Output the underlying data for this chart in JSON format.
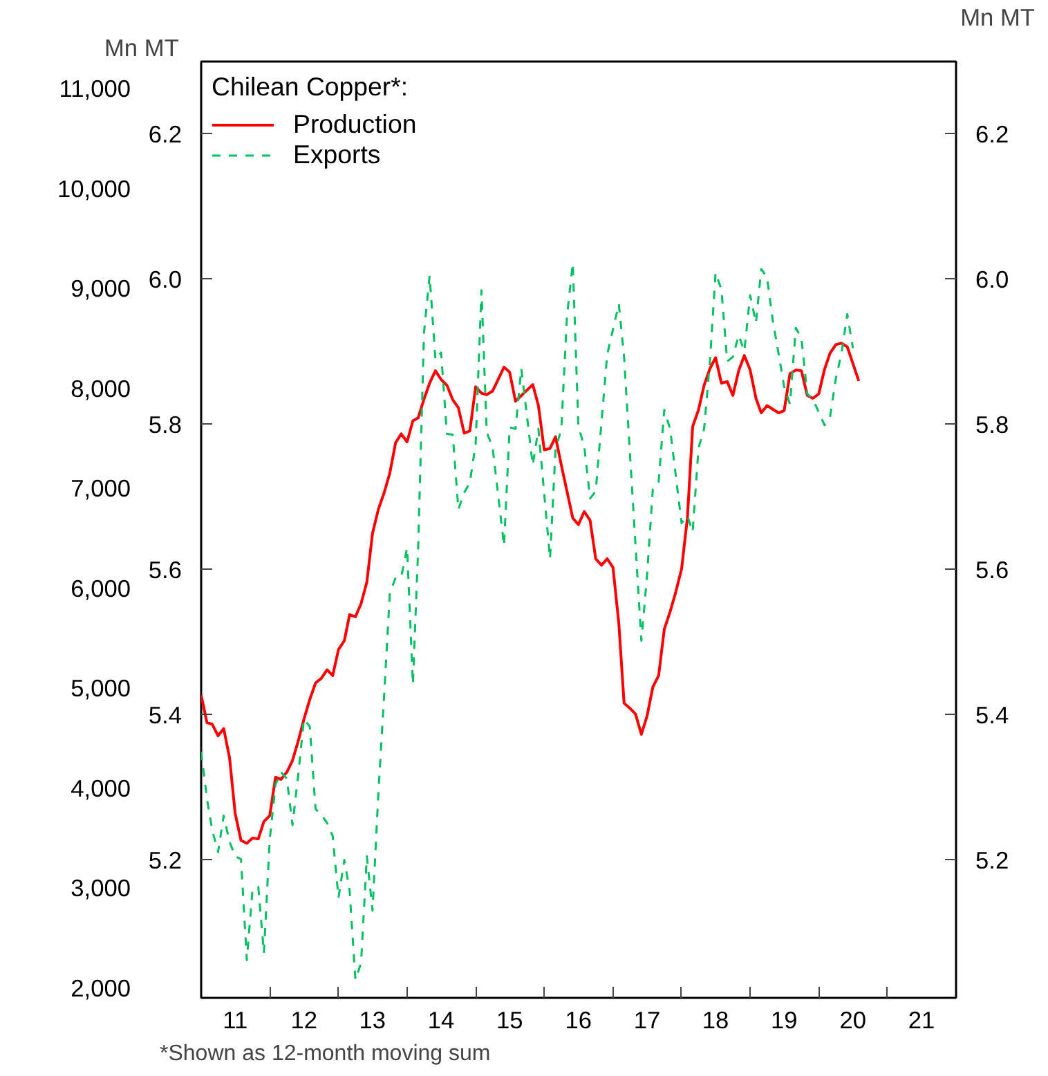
{
  "chart_data": {
    "type": "line",
    "legend_title": "Chilean Copper*:",
    "ylabel": "Mn MT",
    "y2label": "Mn MT",
    "annotations": [
      "*Shown as 12-month moving sum"
    ],
    "legend": "top left",
    "grid": false,
    "xlim": [
      "2011-01",
      "2022-01"
    ],
    "xticks": [
      {
        "value": "2011-07-01",
        "label": "11"
      },
      {
        "value": "2012-07-01",
        "label": "12"
      },
      {
        "value": "2013-07-01",
        "label": "13"
      },
      {
        "value": "2014-07-01",
        "label": "14"
      },
      {
        "value": "2015-07-01",
        "label": "15"
      },
      {
        "value": "2016-07-01",
        "label": "16"
      },
      {
        "value": "2017-07-01",
        "label": "17"
      },
      {
        "value": "2018-07-01",
        "label": "18"
      },
      {
        "value": "2019-07-01",
        "label": "19"
      },
      {
        "value": "2020-07-01",
        "label": "20"
      },
      {
        "value": "2021-07-01",
        "label": "21"
      },
      {
        "value": "2012-01-01",
        "label": null
      },
      {
        "value": "2013-01-01",
        "label": null
      },
      {
        "value": "2014-01-01",
        "label": null
      },
      {
        "value": "2015-01-01",
        "label": null
      },
      {
        "value": "2016-01-01",
        "label": null
      },
      {
        "value": "2017-01-01",
        "label": null
      },
      {
        "value": "2018-01-01",
        "label": null
      },
      {
        "value": "2019-01-01",
        "label": null
      },
      {
        "value": "2020-01-01",
        "label": null
      },
      {
        "value": "2021-01-01",
        "label": null
      }
    ],
    "ylim": [
      5.01,
      6.3
    ],
    "yticks": [
      5.2,
      5.4,
      5.6,
      5.8,
      {
        "value": 6.0,
        "label": "6.0"
      },
      6.2
    ],
    "y2lim": [
      5.01,
      6.3
    ],
    "y2ticks": [
      5.2,
      5.4,
      5.6,
      5.8,
      {
        "value": 6.0,
        "label": "6.0"
      },
      6.2
    ],
    "y3lim": [
      1900,
      11270
    ],
    "y3ticks": [
      {
        "value": 2000,
        "label": "2,000"
      },
      {
        "value": 3000,
        "label": "3,000"
      },
      {
        "value": 4000,
        "label": "4,000"
      },
      {
        "value": 5000,
        "label": "5,000"
      },
      {
        "value": 6000,
        "label": "6,000"
      },
      {
        "value": 7000,
        "label": "7,000"
      },
      {
        "value": 8000,
        "label": "8,000"
      },
      {
        "value": 9000,
        "label": "9,000"
      },
      {
        "value": 10000,
        "label": "10,000"
      },
      {
        "value": 11000,
        "label": "11,000"
      }
    ],
    "series": [
      {
        "name": "Production",
        "color": "#ff0000",
        "line_style": "solid",
        "x": [
          "2011-01",
          "2011-02",
          "2011-03",
          "2011-04",
          "2011-05",
          "2011-06",
          "2011-07",
          "2011-08",
          "2011-09",
          "2011-10",
          "2011-11",
          "2011-12",
          "2012-01",
          "2012-02",
          "2012-03",
          "2012-04",
          "2012-05",
          "2012-06",
          "2012-07",
          "2012-08",
          "2012-09",
          "2012-10",
          "2012-11",
          "2012-12",
          "2013-01",
          "2013-02",
          "2013-03",
          "2013-04",
          "2013-05",
          "2013-06",
          "2013-07",
          "2013-08",
          "2013-09",
          "2013-10",
          "2013-11",
          "2013-12",
          "2014-01",
          "2014-02",
          "2014-03",
          "2014-04",
          "2014-05",
          "2014-06",
          "2014-07",
          "2014-08",
          "2014-09",
          "2014-10",
          "2014-11",
          "2014-12",
          "2015-01",
          "2015-02",
          "2015-03",
          "2015-04",
          "2015-05",
          "2015-06",
          "2015-07",
          "2015-08",
          "2015-11",
          "2015-12",
          "2016-01",
          "2016-02",
          "2016-03",
          "2016-04",
          "2016-06",
          "2016-07",
          "2016-08",
          "2016-09",
          "2016-10",
          "2016-11",
          "2016-12",
          "2017-01",
          "2017-02",
          "2017-03",
          "2017-04",
          "2017-05",
          "2017-06",
          "2017-07",
          "2017-08",
          "2017-09",
          "2017-10",
          "2017-11",
          "2017-12",
          "2018-01",
          "2018-02",
          "2018-03",
          "2018-04",
          "2018-05",
          "2018-06",
          "2018-07",
          "2018-08",
          "2018-09",
          "2018-10",
          "2018-11",
          "2018-12",
          "2019-01",
          "2019-02",
          "2019-03",
          "2019-04",
          "2019-05",
          "2019-06",
          "2019-07",
          "2019-08",
          "2019-09",
          "2019-10",
          "2019-11",
          "2019-12",
          "2020-01",
          "2020-02",
          "2020-03",
          "2020-04",
          "2020-05",
          "2020-06",
          "2020-07",
          "2020-08"
        ],
        "values": [
          5.427,
          5.389,
          5.387,
          5.371,
          5.381,
          5.341,
          5.264,
          5.227,
          5.223,
          5.23,
          5.229,
          5.253,
          5.261,
          5.314,
          5.311,
          5.321,
          5.337,
          5.364,
          5.394,
          5.421,
          5.444,
          5.45,
          5.462,
          5.454,
          5.49,
          5.502,
          5.538,
          5.535,
          5.553,
          5.583,
          5.65,
          5.683,
          5.706,
          5.733,
          5.775,
          5.787,
          5.776,
          5.805,
          5.809,
          5.835,
          5.857,
          5.874,
          5.862,
          5.854,
          5.834,
          5.823,
          5.788,
          5.791,
          5.852,
          5.843,
          5.841,
          5.846,
          5.862,
          5.879,
          5.872,
          5.832,
          5.855,
          5.826,
          5.765,
          5.767,
          5.783,
          5.744,
          5.671,
          5.662,
          5.68,
          5.668,
          5.615,
          5.606,
          5.615,
          5.603,
          5.526,
          5.416,
          5.409,
          5.401,
          5.373,
          5.398,
          5.438,
          5.454,
          5.518,
          5.542,
          5.569,
          5.601,
          5.671,
          5.797,
          5.82,
          5.854,
          5.877,
          5.892,
          5.857,
          5.859,
          5.84,
          5.874,
          5.895,
          5.875,
          5.836,
          5.816,
          5.826,
          5.821,
          5.816,
          5.819,
          5.87,
          5.875,
          5.874,
          5.84,
          5.836,
          5.842,
          5.876,
          5.898,
          5.91,
          5.912,
          5.907,
          5.884,
          5.86
        ]
      },
      {
        "name": "Exports",
        "color": "#00c060",
        "line_style": "dashed",
        "x": [
          "2011-01",
          "2011-02",
          "2011-03",
          "2011-04",
          "2011-05",
          "2011-06",
          "2011-07",
          "2011-08",
          "2011-09",
          "2011-10",
          "2011-11",
          "2011-12",
          "2012-01",
          "2012-02",
          "2012-03",
          "2012-04",
          "2012-05",
          "2012-06",
          "2012-07",
          "2012-08",
          "2012-09",
          "2012-10",
          "2012-11",
          "2012-12",
          "2013-01",
          "2013-02",
          "2013-03",
          "2013-04",
          "2013-05",
          "2013-06",
          "2013-07",
          "2013-08",
          "2013-09",
          "2013-10",
          "2013-11",
          "2013-12",
          "2014-01",
          "2014-02",
          "2014-03",
          "2014-04",
          "2014-05",
          "2014-06",
          "2014-07",
          "2014-08",
          "2014-09",
          "2014-10",
          "2014-11",
          "2014-12",
          "2015-01",
          "2015-02",
          "2015-03",
          "2015-04",
          "2015-06",
          "2015-07",
          "2015-08",
          "2015-09",
          "2015-11",
          "2015-12",
          "2016-02",
          "2016-03",
          "2016-04",
          "2016-05",
          "2016-06",
          "2016-07",
          "2016-08",
          "2016-09",
          "2016-10",
          "2016-12",
          "2017-02",
          "2017-03",
          "2017-06",
          "2017-07",
          "2017-08",
          "2017-09",
          "2017-10",
          "2017-11",
          "2018-01",
          "2018-02",
          "2018-03",
          "2018-04",
          "2018-05",
          "2018-06",
          "2018-07",
          "2018-08",
          "2018-09",
          "2018-10",
          "2018-11",
          "2018-12",
          "2019-01",
          "2019-02",
          "2019-03",
          "2019-04",
          "2019-05",
          "2019-06",
          "2019-07",
          "2019-08",
          "2019-09",
          "2019-10",
          "2019-11",
          "2019-12",
          "2020-02",
          "2020-03",
          "2020-04",
          "2020-05",
          "2020-06",
          "2020-07"
        ],
        "values": [
          5.349,
          5.284,
          5.241,
          5.211,
          5.261,
          5.225,
          5.205,
          5.201,
          5.062,
          5.158,
          5.163,
          5.072,
          5.228,
          5.304,
          5.321,
          5.312,
          5.248,
          5.318,
          5.394,
          5.384,
          5.27,
          5.263,
          5.251,
          5.233,
          5.148,
          5.2,
          5.158,
          5.035,
          5.058,
          5.205,
          5.13,
          5.291,
          5.427,
          5.567,
          5.589,
          5.59,
          5.63,
          5.442,
          5.63,
          5.926,
          6.005,
          5.889,
          5.899,
          5.787,
          5.786,
          5.683,
          5.706,
          5.72,
          5.773,
          5.985,
          5.789,
          5.769,
          5.633,
          5.796,
          5.794,
          5.877,
          5.744,
          5.794,
          5.615,
          5.765,
          5.794,
          5.949,
          6.022,
          5.797,
          5.77,
          5.698,
          5.708,
          5.896,
          5.966,
          5.893,
          5.502,
          5.591,
          5.711,
          5.721,
          5.82,
          5.794,
          5.664,
          5.674,
          5.652,
          5.767,
          5.794,
          5.887,
          6.009,
          5.986,
          5.887,
          5.893,
          5.923,
          5.901,
          5.978,
          5.94,
          6.014,
          6.003,
          5.944,
          5.898,
          5.852,
          5.828,
          5.933,
          5.919,
          5.842,
          5.835,
          5.799,
          5.81,
          5.863,
          5.898,
          5.952,
          5.905
        ]
      }
    ]
  }
}
